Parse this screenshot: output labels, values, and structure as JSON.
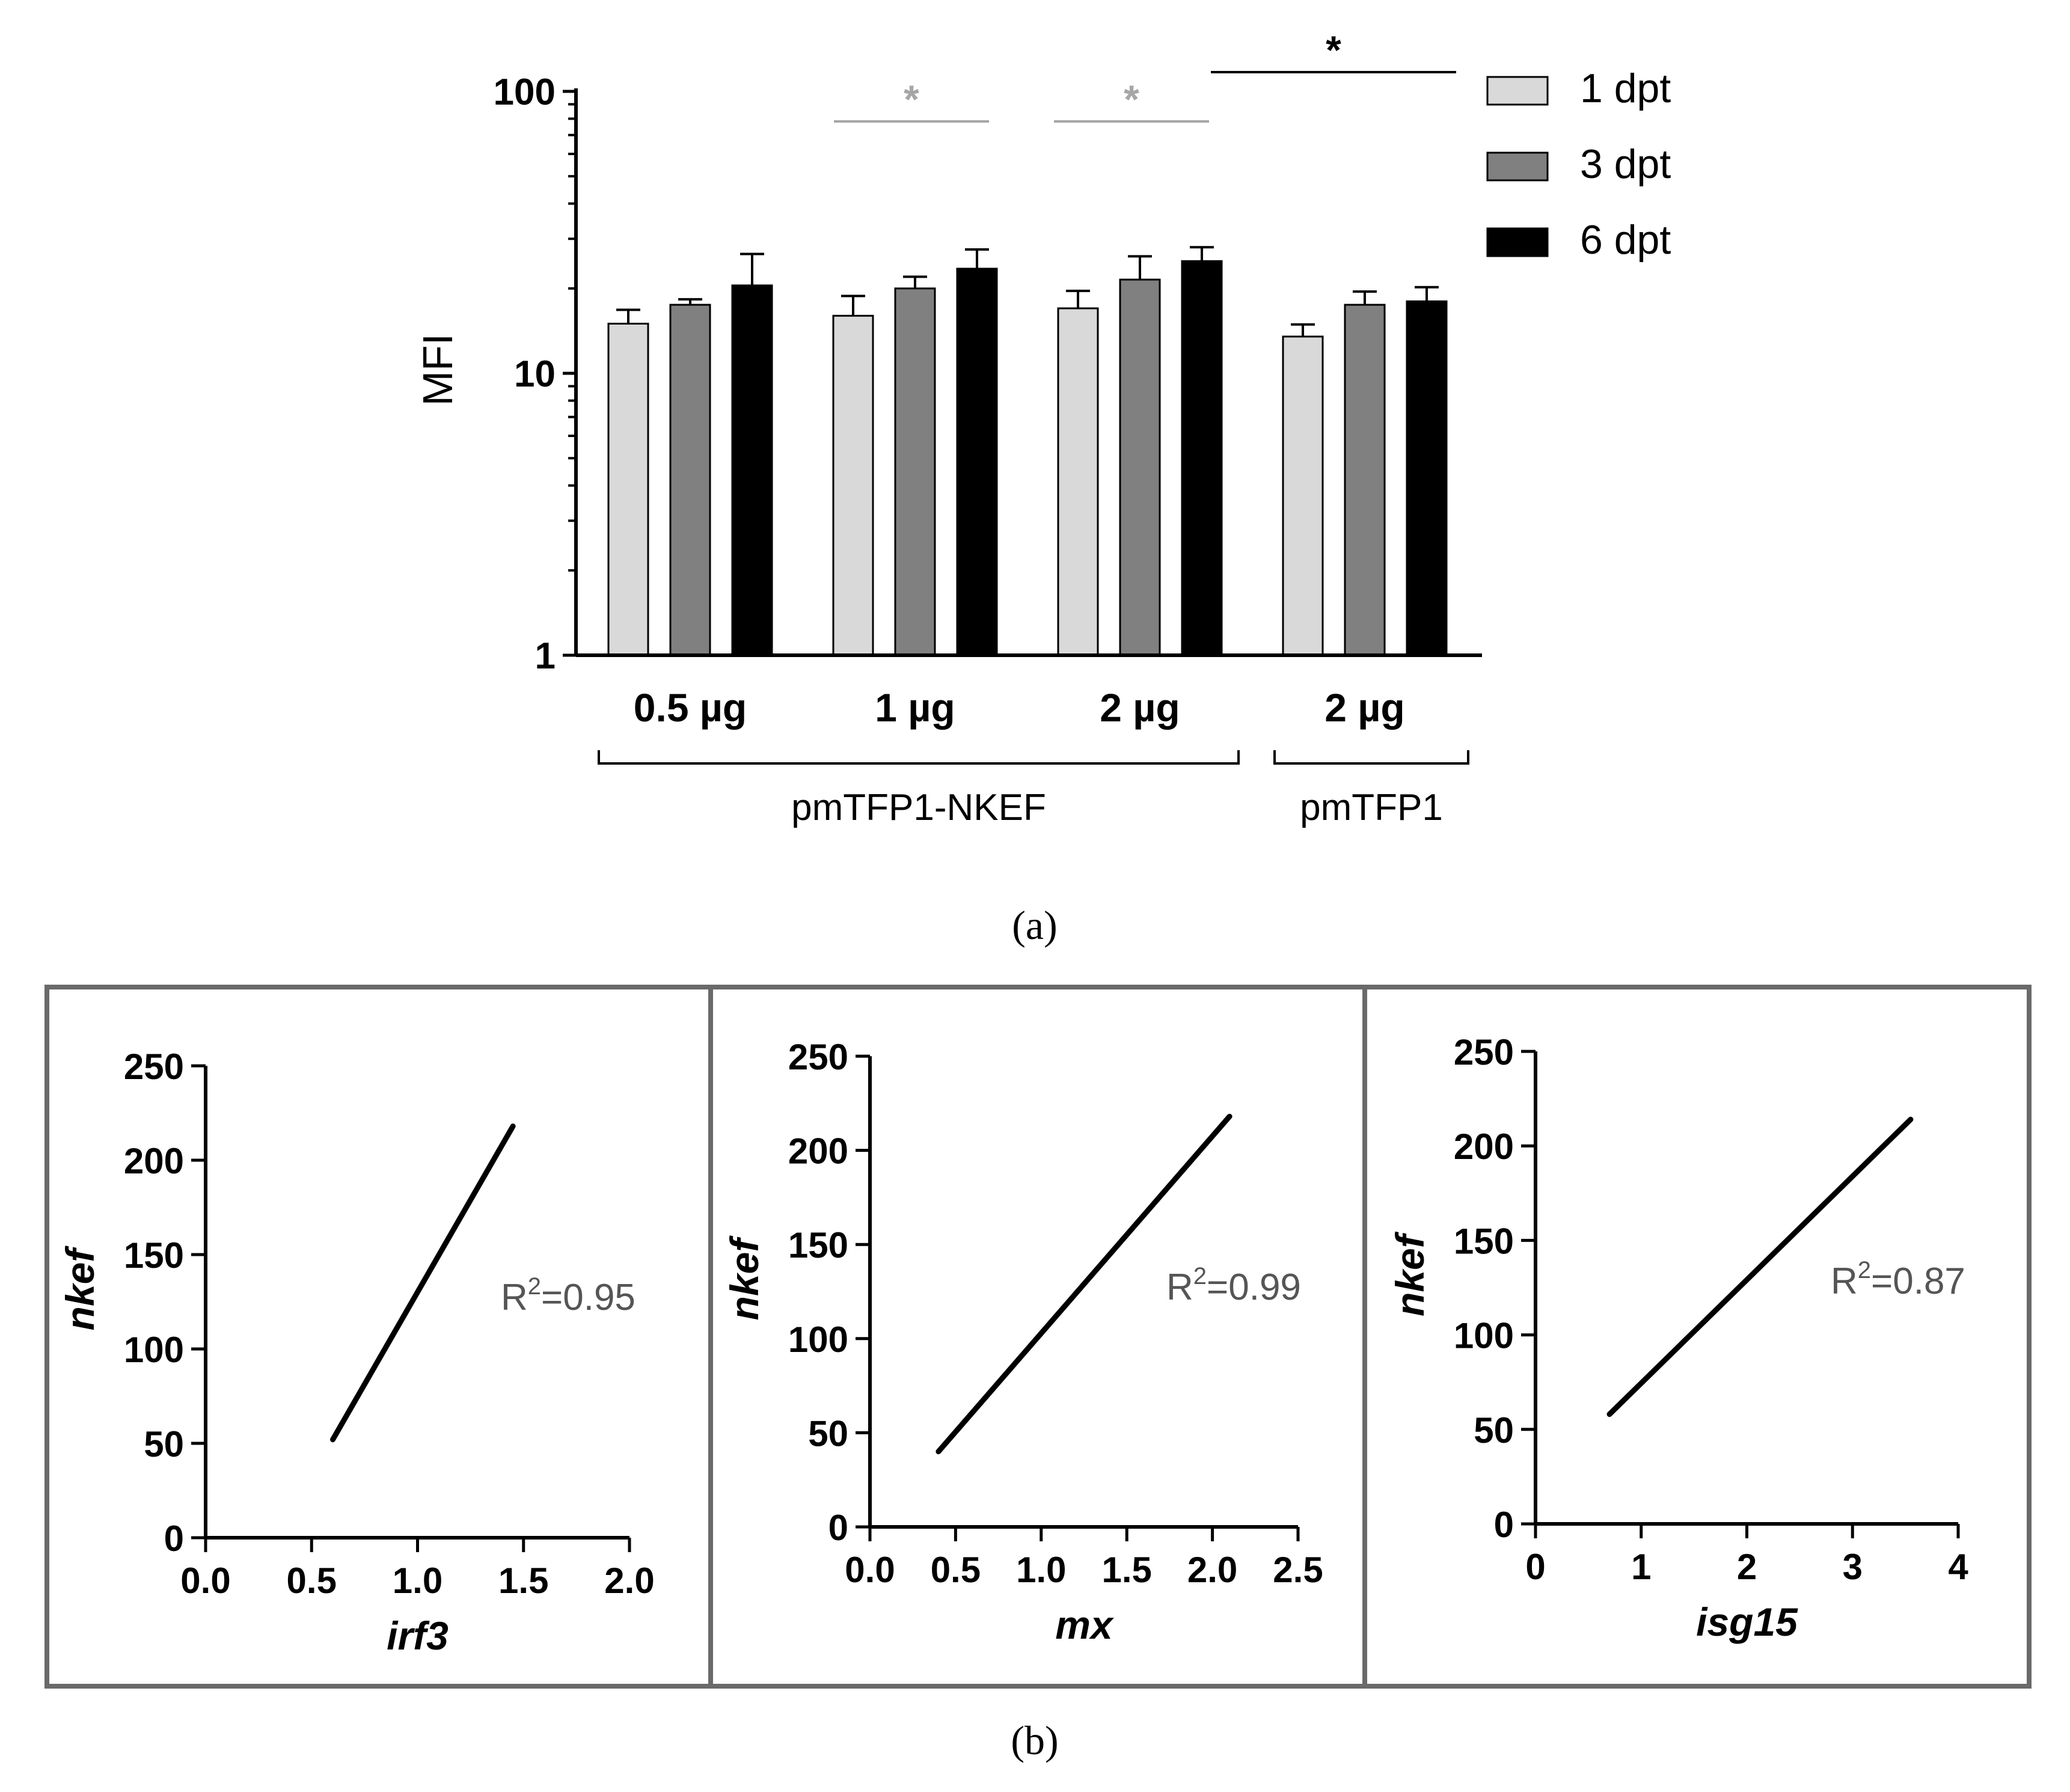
{
  "panel_a_label": "(a)",
  "panel_b_label": "(b)",
  "chart_data": [
    {
      "type": "bar",
      "panel": "a",
      "ylabel": "MFI",
      "yscale": "log",
      "ylim": [
        1,
        100
      ],
      "ytick_labels": [
        "1",
        "10",
        "100"
      ],
      "categories": [
        "0.5 µg",
        "1 µg",
        "2 µg",
        "2 µg"
      ],
      "series": [
        {
          "name": "1 dpt",
          "color": "#d9d9d9",
          "values": [
            15,
            16,
            17,
            13.5
          ],
          "errors": [
            1.8,
            2.8,
            2.6,
            1.4
          ]
        },
        {
          "name": "3 dpt",
          "color": "#808080",
          "values": [
            17.5,
            20,
            21.5,
            17.5
          ],
          "errors": [
            0.8,
            2.0,
            4.5,
            2.0
          ]
        },
        {
          "name": "6 dpt",
          "color": "#000000",
          "values": [
            20.5,
            23.5,
            25,
            18
          ],
          "errors": [
            6.0,
            4.0,
            3.0,
            2.2
          ]
        }
      ],
      "group_brackets": [
        {
          "label": "pmTFP1-NKEF",
          "from": 0,
          "to": 2
        },
        {
          "label": "pmTFP1",
          "from": 3,
          "to": 3
        }
      ],
      "significance": [
        {
          "label": "*",
          "color": "#a6a6a6",
          "between": "1 µg group"
        },
        {
          "label": "*",
          "color": "#a6a6a6",
          "between": "2 µg group"
        },
        {
          "label": "*",
          "color": "#000000",
          "between": "pmTFP1 2 µg"
        }
      ],
      "legend_position": "top-right"
    },
    {
      "type": "line",
      "panel": "b1",
      "xlabel": "irf3",
      "ylabel": "nkef",
      "xlim": [
        0,
        2
      ],
      "ylim": [
        0,
        250
      ],
      "xticks": [
        "0.0",
        "0.5",
        "1.0",
        "1.5",
        "2.0"
      ],
      "yticks": [
        "0",
        "50",
        "100",
        "150",
        "200",
        "250"
      ],
      "x": [
        0.6,
        1.45
      ],
      "y": [
        52,
        218
      ],
      "annotation": "R²=0.95",
      "r2_value": "=0.95"
    },
    {
      "type": "line",
      "panel": "b2",
      "xlabel": "mx",
      "ylabel": "nkef",
      "xlim": [
        0,
        2.5
      ],
      "ylim": [
        0,
        250
      ],
      "xticks": [
        "0.0",
        "0.5",
        "1.0",
        "1.5",
        "2.0",
        "2.5"
      ],
      "yticks": [
        "0",
        "50",
        "100",
        "150",
        "200",
        "250"
      ],
      "x": [
        0.4,
        2.1
      ],
      "y": [
        40,
        218
      ],
      "annotation": "R²=0.99",
      "r2_value": "=0.99"
    },
    {
      "type": "line",
      "panel": "b3",
      "xlabel": "isg15",
      "ylabel": "nkef",
      "xlim": [
        0,
        4
      ],
      "ylim": [
        0,
        250
      ],
      "xticks": [
        "0",
        "1",
        "2",
        "3",
        "4"
      ],
      "yticks": [
        "0",
        "50",
        "100",
        "150",
        "200",
        "250"
      ],
      "x": [
        0.7,
        3.55
      ],
      "y": [
        58,
        214
      ],
      "annotation": "R²=0.87",
      "r2_value": "=0.87"
    }
  ]
}
